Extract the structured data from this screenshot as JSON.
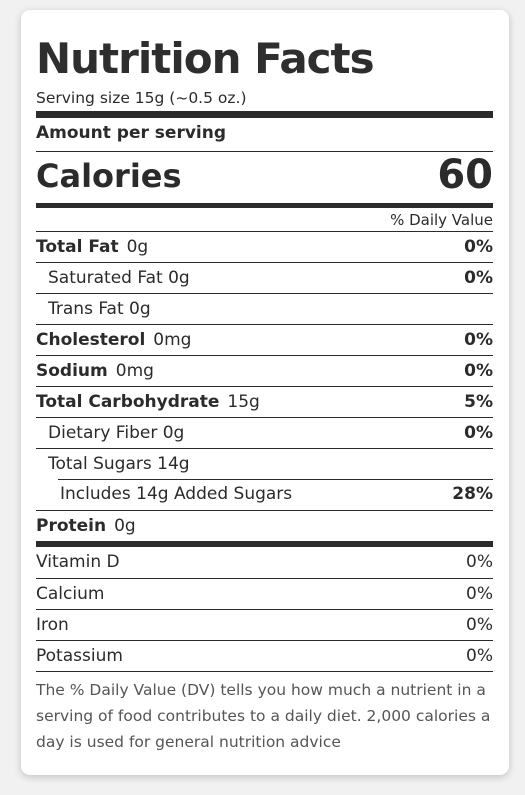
{
  "label": {
    "title": "Nutrition Facts",
    "serving_size": "Serving size 15g (~0.5 oz.)",
    "amount_per_serving": "Amount per serving",
    "calories_label": "Calories",
    "calories_value": "60",
    "daily_value_header": "% Daily Value",
    "nutrients": [
      {
        "name": "Total Fat",
        "value": "0g",
        "dv": "0%"
      },
      {
        "name": "Saturated Fat 0g",
        "dv": "0%"
      },
      {
        "name": "Trans Fat 0g"
      },
      {
        "name": "Cholesterol",
        "value": "0mg",
        "dv": "0%"
      },
      {
        "name": "Sodium",
        "value": "0mg",
        "dv": "0%"
      },
      {
        "name": "Total Carbohydrate",
        "value": "15g",
        "dv": "5%"
      },
      {
        "name": "Dietary Fiber 0g",
        "dv": "0%"
      },
      {
        "name": "Total Sugars 14g"
      },
      {
        "name": "Includes 14g Added Sugars",
        "dv": "28%"
      },
      {
        "name": "Protein",
        "value": "0g"
      }
    ],
    "vitamins": [
      {
        "name": "Vitamin D",
        "dv": "0%"
      },
      {
        "name": "Calcium",
        "dv": "0%"
      },
      {
        "name": "Iron",
        "dv": "0%"
      },
      {
        "name": "Potassium",
        "dv": "0%"
      }
    ],
    "footnote": "The % Daily Value (DV) tells you how much a nutrient in a serving of food contributes to a daily diet. 2,000 calories a day is used for general nutrition advice"
  }
}
